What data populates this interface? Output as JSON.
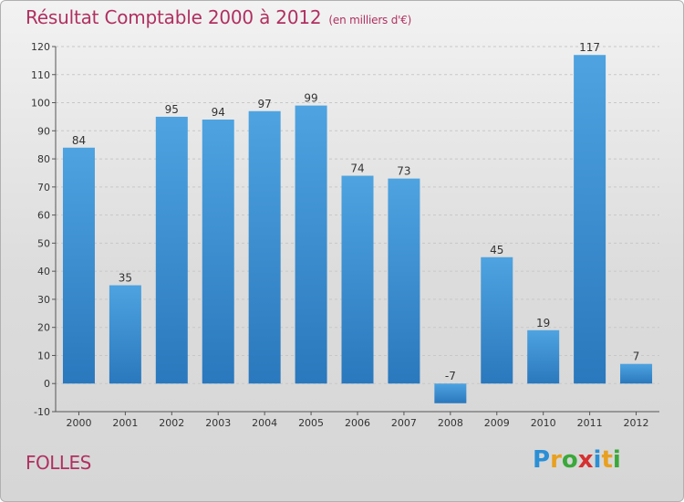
{
  "title": "Résultat Comptable 2000 à 2012",
  "subtitle": "(en milliers d'€)",
  "commune": "FOLLES",
  "logo": {
    "letters": [
      "P",
      "r",
      "o",
      "x",
      "i",
      "t",
      "i"
    ],
    "colors": [
      "#2b8fd6",
      "#e8a020",
      "#3aa83a",
      "#d63030",
      "#2b8fd6",
      "#e8a020",
      "#3aa83a"
    ]
  },
  "colors": {
    "bar": "#4ea3e0",
    "bar_dark": "#2a78bd",
    "title": "#b03060",
    "grid": "#c8c8c8"
  },
  "chart_data": {
    "type": "bar",
    "title": "Résultat Comptable 2000 à 2012",
    "subtitle": "(en milliers d'€)",
    "categories": [
      "2000",
      "2001",
      "2002",
      "2003",
      "2004",
      "2005",
      "2006",
      "2007",
      "2008",
      "2009",
      "2010",
      "2011",
      "2012"
    ],
    "values": [
      84,
      35,
      95,
      94,
      97,
      99,
      74,
      73,
      -7,
      45,
      19,
      117,
      7
    ],
    "ylim": [
      -10,
      120
    ],
    "yticks": [
      -10,
      0,
      10,
      20,
      30,
      40,
      50,
      60,
      70,
      80,
      90,
      100,
      110,
      120
    ],
    "grid": true,
    "xlabel": "",
    "ylabel": ""
  }
}
